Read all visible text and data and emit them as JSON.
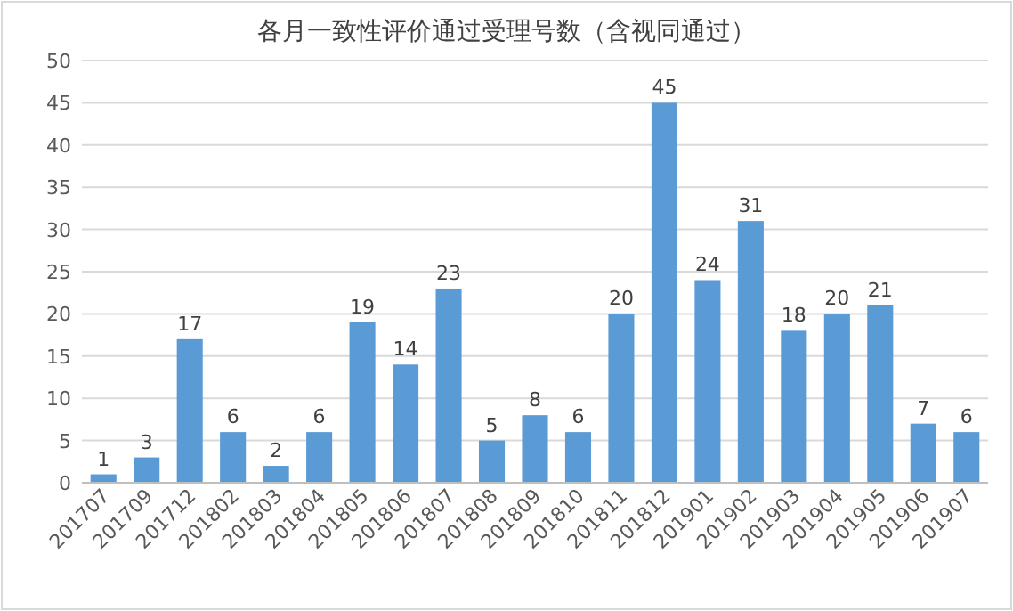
{
  "chart_data": {
    "type": "bar",
    "title": "各月一致性评价通过受理号数（含视同通过）",
    "categories": [
      "201707",
      "201709",
      "201712",
      "201802",
      "201803",
      "201804",
      "201805",
      "201806",
      "201807",
      "201808",
      "201809",
      "201810",
      "201811",
      "201812",
      "201901",
      "201902",
      "201903",
      "201904",
      "201905",
      "201906",
      "201907"
    ],
    "values": [
      1,
      3,
      17,
      6,
      2,
      6,
      19,
      14,
      23,
      5,
      8,
      6,
      20,
      45,
      24,
      31,
      18,
      20,
      21,
      7,
      6
    ],
    "color": "#5b9bd5",
    "ylim": [
      0,
      50
    ],
    "yticks": [
      0,
      5,
      10,
      15,
      20,
      25,
      30,
      35,
      40,
      45,
      50
    ],
    "grid": "y",
    "data_labels": true
  }
}
